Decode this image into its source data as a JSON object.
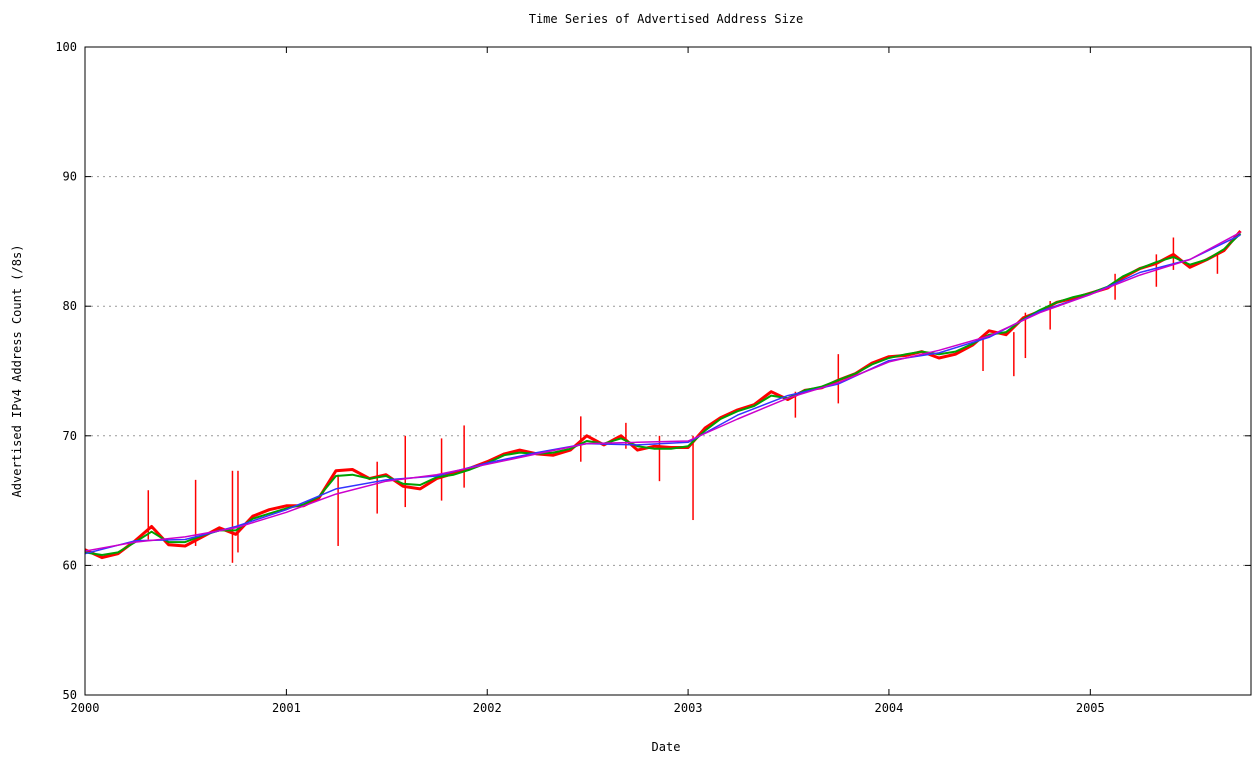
{
  "chart_data": {
    "type": "line",
    "title": "Time Series of Advertised Address Size",
    "xlabel": "Date",
    "ylabel": "Advertised IPv4 Address Count (/8s)",
    "xlim": [
      "2000-01-01",
      "2005-10-20"
    ],
    "ylim": [
      50,
      100
    ],
    "x_ticks": [
      "2000",
      "2001",
      "2002",
      "2003",
      "2004",
      "2005"
    ],
    "y_ticks": [
      50,
      60,
      70,
      80,
      90,
      100
    ],
    "grid": "horizontal dotted",
    "legend": "none",
    "colors": {
      "raw": "#ff0000",
      "smoothed": "#00a000",
      "trend": "#3333ff",
      "fit": "#cc00cc"
    },
    "series": [
      {
        "role": "raw",
        "x": [
          "2000-01-01",
          "2000-02-01",
          "2000-03-01",
          "2000-04-01",
          "2000-05-01",
          "2000-06-01",
          "2000-07-01",
          "2000-08-01",
          "2000-09-01",
          "2000-10-01",
          "2000-11-01",
          "2000-12-01",
          "2001-01-01",
          "2001-02-01",
          "2001-03-01",
          "2001-04-01",
          "2001-05-01",
          "2001-06-01",
          "2001-07-01",
          "2001-08-01",
          "2001-09-01",
          "2001-10-01",
          "2001-11-01",
          "2001-12-01",
          "2002-01-01",
          "2002-02-01",
          "2002-03-01",
          "2002-04-01",
          "2002-05-01",
          "2002-06-01",
          "2002-07-01",
          "2002-08-01",
          "2002-09-01",
          "2002-10-01",
          "2002-11-01",
          "2002-12-01",
          "2003-01-01",
          "2003-02-01",
          "2003-03-01",
          "2003-04-01",
          "2003-05-01",
          "2003-06-01",
          "2003-07-01",
          "2003-08-01",
          "2003-09-01",
          "2003-10-01",
          "2003-11-01",
          "2003-12-01",
          "2004-01-01",
          "2004-02-01",
          "2004-03-01",
          "2004-04-01",
          "2004-05-01",
          "2004-06-01",
          "2004-07-01",
          "2004-08-01",
          "2004-09-01",
          "2004-10-01",
          "2004-11-01",
          "2004-12-01",
          "2005-01-01",
          "2005-02-01",
          "2005-03-01",
          "2005-04-01",
          "2005-05-01",
          "2005-06-01",
          "2005-07-01",
          "2005-08-01",
          "2005-09-01",
          "2005-10-01"
        ],
        "values": [
          61.2,
          60.6,
          60.9,
          61.9,
          63.0,
          61.6,
          61.5,
          62.2,
          62.9,
          62.4,
          63.8,
          64.3,
          64.6,
          64.6,
          65.2,
          67.3,
          67.4,
          66.7,
          67.0,
          66.1,
          65.9,
          66.7,
          67.1,
          67.5,
          68.0,
          68.6,
          68.9,
          68.6,
          68.5,
          68.9,
          70.0,
          69.3,
          70.0,
          68.9,
          69.2,
          69.1,
          69.1,
          70.6,
          71.4,
          72.0,
          72.4,
          73.4,
          72.8,
          73.5,
          73.7,
          74.3,
          74.8,
          75.6,
          76.1,
          76.2,
          76.5,
          76.0,
          76.3,
          77.0,
          78.1,
          77.8,
          79.1,
          79.6,
          80.3,
          80.6,
          81.0,
          81.4,
          82.2,
          82.9,
          83.3,
          84.0,
          83.0,
          83.6,
          84.3,
          85.8
        ]
      },
      {
        "role": "smoothed",
        "x": [
          "2000-01-01",
          "2000-02-01",
          "2000-03-01",
          "2000-04-01",
          "2000-05-01",
          "2000-06-01",
          "2000-07-01",
          "2000-08-01",
          "2000-09-01",
          "2000-10-01",
          "2000-11-01",
          "2000-12-01",
          "2001-01-01",
          "2001-02-01",
          "2001-03-01",
          "2001-04-01",
          "2001-05-01",
          "2001-06-01",
          "2001-07-01",
          "2001-08-01",
          "2001-09-01",
          "2001-10-01",
          "2001-11-01",
          "2001-12-01",
          "2002-01-01",
          "2002-02-01",
          "2002-03-01",
          "2002-04-01",
          "2002-05-01",
          "2002-06-01",
          "2002-07-01",
          "2002-08-01",
          "2002-09-01",
          "2002-10-01",
          "2002-11-01",
          "2002-12-01",
          "2003-01-01",
          "2003-02-01",
          "2003-03-01",
          "2003-04-01",
          "2003-05-01",
          "2003-06-01",
          "2003-07-01",
          "2003-08-01",
          "2003-09-01",
          "2003-10-01",
          "2003-11-01",
          "2003-12-01",
          "2004-01-01",
          "2004-02-01",
          "2004-03-01",
          "2004-04-01",
          "2004-05-01",
          "2004-06-01",
          "2004-07-01",
          "2004-08-01",
          "2004-09-01",
          "2004-10-01",
          "2004-11-01",
          "2004-12-01",
          "2005-01-01",
          "2005-02-01",
          "2005-03-01",
          "2005-04-01",
          "2005-05-01",
          "2005-06-01",
          "2005-07-01",
          "2005-08-01",
          "2005-09-01",
          "2005-10-01"
        ],
        "values": [
          61.0,
          60.8,
          61.0,
          61.8,
          62.6,
          61.8,
          61.8,
          62.3,
          62.7,
          62.7,
          63.6,
          64.0,
          64.4,
          64.7,
          65.3,
          66.9,
          67.0,
          66.7,
          66.9,
          66.3,
          66.2,
          66.8,
          67.0,
          67.4,
          67.9,
          68.5,
          68.7,
          68.6,
          68.7,
          69.0,
          69.6,
          69.4,
          69.8,
          69.2,
          69.0,
          69.0,
          69.2,
          70.4,
          71.3,
          71.9,
          72.3,
          73.1,
          72.9,
          73.5,
          73.8,
          74.3,
          74.8,
          75.5,
          76.0,
          76.3,
          76.5,
          76.3,
          76.5,
          77.1,
          77.8,
          78.0,
          79.0,
          79.7,
          80.3,
          80.7,
          81.0,
          81.5,
          82.3,
          82.9,
          83.4,
          83.8,
          83.2,
          83.6,
          84.4,
          85.6
        ]
      },
      {
        "role": "trend",
        "x": [
          "2000-01-01",
          "2000-04-01",
          "2000-07-01",
          "2000-10-01",
          "2001-01-01",
          "2001-04-01",
          "2001-07-01",
          "2001-10-01",
          "2002-01-01",
          "2002-04-01",
          "2002-07-01",
          "2002-10-01",
          "2003-01-01",
          "2003-04-01",
          "2003-07-01",
          "2003-10-01",
          "2004-01-01",
          "2004-04-01",
          "2004-07-01",
          "2004-10-01",
          "2005-01-01",
          "2005-04-01",
          "2005-07-01",
          "2005-10-01"
        ],
        "values": [
          60.9,
          61.9,
          62.0,
          63.0,
          64.3,
          65.9,
          66.6,
          66.9,
          67.9,
          68.7,
          69.4,
          69.3,
          69.5,
          71.6,
          73.1,
          74.0,
          75.8,
          76.4,
          77.6,
          79.6,
          80.9,
          82.6,
          83.6,
          85.5
        ]
      },
      {
        "role": "fit",
        "x": [
          "2000-01-01",
          "2000-04-01",
          "2000-07-01",
          "2000-10-01",
          "2001-01-01",
          "2001-04-01",
          "2001-07-01",
          "2001-10-01",
          "2002-01-01",
          "2002-04-01",
          "2002-07-01",
          "2002-10-01",
          "2003-01-01",
          "2003-04-01",
          "2003-07-01",
          "2003-10-01",
          "2004-01-01",
          "2004-04-01",
          "2004-07-01",
          "2004-10-01",
          "2005-01-01",
          "2005-04-01",
          "2005-07-01",
          "2005-10-01"
        ],
        "values": [
          61.1,
          61.8,
          62.2,
          62.9,
          64.1,
          65.5,
          66.5,
          67.0,
          67.8,
          68.6,
          69.4,
          69.5,
          69.6,
          71.3,
          72.9,
          74.1,
          75.7,
          76.6,
          77.7,
          79.5,
          80.9,
          82.4,
          83.6,
          85.7
        ]
      }
    ],
    "spikes": [
      {
        "x": "2000-04-25",
        "lo": 62.0,
        "hi": 65.8
      },
      {
        "x": "2000-07-20",
        "lo": 61.5,
        "hi": 66.6
      },
      {
        "x": "2000-09-25",
        "lo": 60.2,
        "hi": 67.3
      },
      {
        "x": "2000-10-05",
        "lo": 61.0,
        "hi": 67.3
      },
      {
        "x": "2001-04-05",
        "lo": 61.5,
        "hi": 67.0
      },
      {
        "x": "2001-06-15",
        "lo": 64.0,
        "hi": 68.0
      },
      {
        "x": "2001-08-05",
        "lo": 64.5,
        "hi": 70.0
      },
      {
        "x": "2001-10-10",
        "lo": 65.0,
        "hi": 69.8
      },
      {
        "x": "2001-11-20",
        "lo": 66.0,
        "hi": 70.8
      },
      {
        "x": "2002-06-20",
        "lo": 68.0,
        "hi": 71.5
      },
      {
        "x": "2002-09-10",
        "lo": 69.0,
        "hi": 71.0
      },
      {
        "x": "2002-11-10",
        "lo": 66.5,
        "hi": 70.0
      },
      {
        "x": "2003-01-10",
        "lo": 63.5,
        "hi": 70.0
      },
      {
        "x": "2003-07-15",
        "lo": 71.4,
        "hi": 73.4
      },
      {
        "x": "2003-10-01",
        "lo": 72.5,
        "hi": 76.3
      },
      {
        "x": "2004-06-20",
        "lo": 75.0,
        "hi": 77.5
      },
      {
        "x": "2004-08-15",
        "lo": 74.6,
        "hi": 78.0
      },
      {
        "x": "2004-09-05",
        "lo": 76.0,
        "hi": 79.5
      },
      {
        "x": "2004-10-20",
        "lo": 78.2,
        "hi": 80.4
      },
      {
        "x": "2005-02-15",
        "lo": 80.5,
        "hi": 82.5
      },
      {
        "x": "2005-05-01",
        "lo": 81.5,
        "hi": 84.0
      },
      {
        "x": "2005-06-01",
        "lo": 82.8,
        "hi": 85.3
      },
      {
        "x": "2005-08-20",
        "lo": 82.5,
        "hi": 84.0
      }
    ]
  }
}
